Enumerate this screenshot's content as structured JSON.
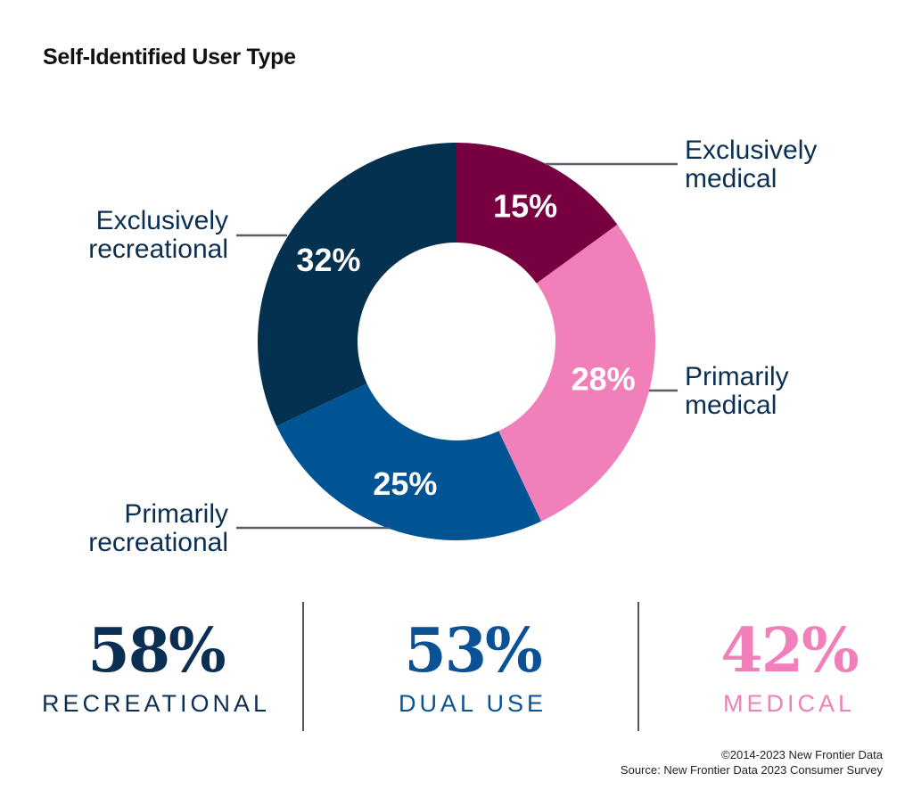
{
  "title": "Self-Identified User Type",
  "chart_data": {
    "type": "pie",
    "variant": "donut",
    "slices": [
      {
        "label_lines": [
          "Exclusively",
          "medical"
        ],
        "value": 15,
        "value_label": "15%",
        "color": "#770040"
      },
      {
        "label_lines": [
          "Primarily",
          "medical"
        ],
        "value": 28,
        "value_label": "28%",
        "color": "#f07fba"
      },
      {
        "label_lines": [
          "Primarily",
          "recreational"
        ],
        "value": 25,
        "value_label": "25%",
        "color": "#005494"
      },
      {
        "label_lines": [
          "Exclusively",
          "recreational"
        ],
        "value": 32,
        "value_label": "32%",
        "color": "#053150"
      }
    ]
  },
  "summary": [
    {
      "value": "58%",
      "label": "RECREATIONAL",
      "color": "#0b2f52"
    },
    {
      "value": "53%",
      "label": "DUAL USE",
      "color": "#0a5196"
    },
    {
      "value": "42%",
      "label": "MEDICAL",
      "color": "#f07fba"
    }
  ],
  "footer": {
    "copyright": "©2014-2023 New Frontier Data",
    "source": "Source: New Frontier Data 2023 Consumer Survey"
  }
}
